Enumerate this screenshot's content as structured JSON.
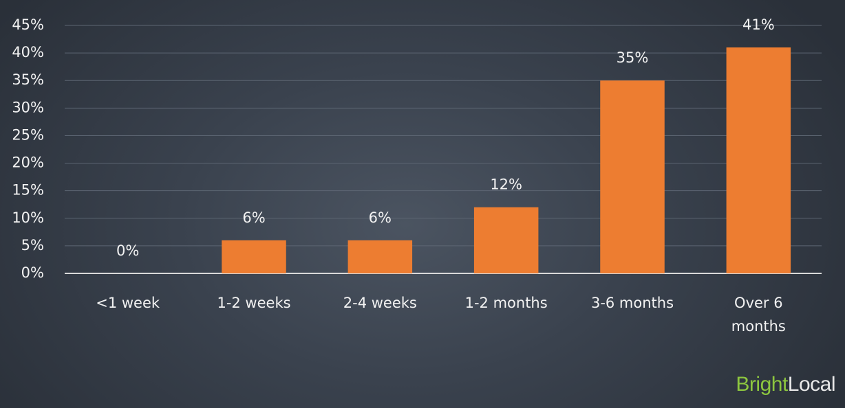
{
  "chart_data": {
    "type": "bar",
    "categories": [
      "<1 week",
      "1-2 weeks",
      "2-4 weeks",
      "1-2 months",
      "3-6 months",
      "Over 6 months"
    ],
    "values": [
      0,
      6,
      6,
      12,
      35,
      41
    ],
    "value_labels": [
      "0%",
      "6%",
      "6%",
      "12%",
      "35%",
      "41%"
    ],
    "color": "#ed7d31",
    "ylim": [
      0,
      45
    ],
    "yticks": [
      {
        "value": 0,
        "label": "0%"
      },
      {
        "value": 5,
        "label": "5%"
      },
      {
        "value": 10,
        "label": "10%"
      },
      {
        "value": 15,
        "label": "15%"
      },
      {
        "value": 20,
        "label": "20%"
      },
      {
        "value": 25,
        "label": "25%"
      },
      {
        "value": 30,
        "label": "30%"
      },
      {
        "value": 35,
        "label": "35%"
      },
      {
        "value": 40,
        "label": "40%"
      },
      {
        "value": 45,
        "label": "45%"
      }
    ],
    "grid": true
  },
  "brand": {
    "part1": "Bright",
    "part2": "Local"
  }
}
